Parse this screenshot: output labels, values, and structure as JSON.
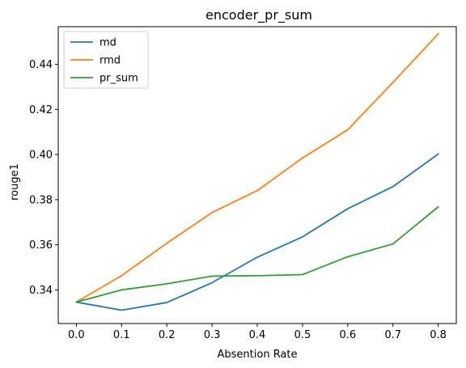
{
  "chart_data": {
    "type": "line",
    "title": "encoder_pr_sum",
    "xlabel": "Absention Rate",
    "ylabel": "rouge1",
    "x": [
      0.0,
      0.1,
      0.2,
      0.3,
      0.4,
      0.5,
      0.6,
      0.7,
      0.8
    ],
    "x_tick_labels": [
      "0.0",
      "0.1",
      "0.2",
      "0.3",
      "0.4",
      "0.5",
      "0.6",
      "0.7",
      "0.8"
    ],
    "y_ticks": [
      0.34,
      0.36,
      0.38,
      0.4,
      0.42,
      0.44
    ],
    "y_tick_labels": [
      "0.34",
      "0.36",
      "0.38",
      "0.40",
      "0.42",
      "0.44"
    ],
    "xlim": [
      -0.04,
      0.84
    ],
    "ylim": [
      0.3251,
      0.4567
    ],
    "grid": false,
    "legend_position": "top-left",
    "series": [
      {
        "name": "md",
        "color": "#1f77b4",
        "values": [
          0.3346,
          0.331,
          0.3344,
          0.3432,
          0.3545,
          0.3635,
          0.376,
          0.3858,
          0.4002
        ]
      },
      {
        "name": "rmd",
        "color": "#ff7f0e",
        "values": [
          0.3346,
          0.3463,
          0.3607,
          0.3743,
          0.384,
          0.3985,
          0.411,
          0.432,
          0.4535
        ]
      },
      {
        "name": "pr_sum",
        "color": "#2ca02c",
        "values": [
          0.3346,
          0.34,
          0.3427,
          0.3461,
          0.3463,
          0.3468,
          0.3547,
          0.3604,
          0.3768
        ]
      }
    ]
  }
}
